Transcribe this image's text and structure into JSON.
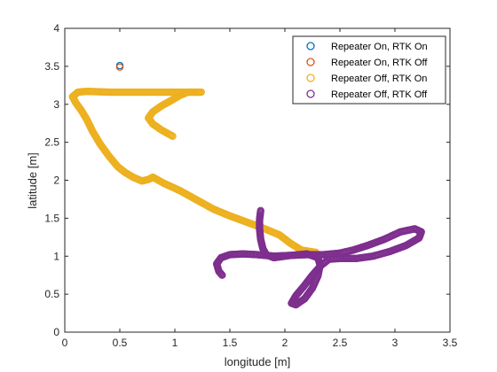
{
  "chart_data": {
    "type": "scatter",
    "title": "",
    "xlabel": "longitude [m]",
    "ylabel": "latitude [m]",
    "xlim": [
      0,
      3.5
    ],
    "ylim": [
      0,
      4
    ],
    "xticks": [
      "0",
      "0.5",
      "1",
      "1.5",
      "2",
      "2.5",
      "3",
      "3.5"
    ],
    "yticks": [
      "0",
      "0.5",
      "1",
      "1.5",
      "2",
      "2.5",
      "3",
      "3.5",
      "4"
    ],
    "grid": false,
    "legend_position": "top-right",
    "series": [
      {
        "name": "Repeater On, RTK On",
        "color": "#0072bd",
        "path": [
          [
            0.5,
            3.51
          ]
        ]
      },
      {
        "name": "Repeater On, RTK Off",
        "color": "#d95319",
        "path": [
          [
            0.5,
            3.49
          ]
        ]
      },
      {
        "name": "Repeater Off, RTK On",
        "color": "#edb120",
        "path": [
          [
            0.98,
            2.58
          ],
          [
            0.88,
            2.66
          ],
          [
            0.8,
            2.74
          ],
          [
            0.76,
            2.82
          ],
          [
            0.8,
            2.9
          ],
          [
            0.88,
            2.98
          ],
          [
            0.98,
            3.06
          ],
          [
            1.05,
            3.12
          ],
          [
            1.12,
            3.16
          ],
          [
            1.24,
            3.16
          ],
          [
            1.0,
            3.16
          ],
          [
            0.8,
            3.16
          ],
          [
            0.6,
            3.16
          ],
          [
            0.4,
            3.16
          ],
          [
            0.2,
            3.17
          ],
          [
            0.12,
            3.16
          ],
          [
            0.07,
            3.1
          ],
          [
            0.1,
            3.02
          ],
          [
            0.15,
            2.92
          ],
          [
            0.2,
            2.8
          ],
          [
            0.25,
            2.65
          ],
          [
            0.32,
            2.48
          ],
          [
            0.4,
            2.32
          ],
          [
            0.48,
            2.18
          ],
          [
            0.55,
            2.1
          ],
          [
            0.62,
            2.04
          ],
          [
            0.7,
            1.99
          ],
          [
            0.76,
            2.01
          ],
          [
            0.8,
            2.04
          ],
          [
            0.9,
            1.96
          ],
          [
            1.05,
            1.86
          ],
          [
            1.2,
            1.74
          ],
          [
            1.35,
            1.62
          ],
          [
            1.5,
            1.53
          ],
          [
            1.65,
            1.45
          ],
          [
            1.8,
            1.37
          ],
          [
            1.95,
            1.28
          ],
          [
            2.05,
            1.17
          ],
          [
            2.15,
            1.08
          ],
          [
            2.28,
            1.05
          ]
        ]
      },
      {
        "name": "Repeater Off, RTK Off",
        "color": "#7e2f8e",
        "path": [
          [
            1.43,
            0.75
          ],
          [
            1.4,
            0.8
          ],
          [
            1.38,
            0.9
          ],
          [
            1.42,
            0.98
          ],
          [
            1.5,
            1.02
          ],
          [
            1.62,
            1.03
          ],
          [
            1.75,
            1.02
          ],
          [
            1.9,
            1.0
          ],
          [
            2.05,
            1.01
          ],
          [
            2.2,
            1.02
          ],
          [
            2.35,
            1.02
          ],
          [
            2.5,
            1.04
          ],
          [
            2.62,
            1.08
          ],
          [
            2.75,
            1.14
          ],
          [
            2.9,
            1.22
          ],
          [
            3.05,
            1.32
          ],
          [
            3.18,
            1.36
          ],
          [
            3.24,
            1.32
          ],
          [
            3.22,
            1.24
          ],
          [
            3.1,
            1.14
          ],
          [
            2.95,
            1.06
          ],
          [
            2.8,
            1.0
          ],
          [
            2.65,
            0.97
          ],
          [
            2.5,
            0.97
          ],
          [
            2.4,
            0.96
          ],
          [
            2.33,
            0.88
          ],
          [
            2.25,
            0.75
          ],
          [
            2.17,
            0.6
          ],
          [
            2.1,
            0.48
          ],
          [
            2.06,
            0.38
          ],
          [
            2.1,
            0.36
          ],
          [
            2.18,
            0.44
          ],
          [
            2.25,
            0.58
          ],
          [
            2.3,
            0.74
          ],
          [
            2.32,
            0.88
          ],
          [
            2.3,
            0.98
          ],
          [
            2.2,
            1.03
          ],
          [
            2.05,
            1.01
          ],
          [
            1.9,
            0.98
          ],
          [
            1.83,
            1.02
          ],
          [
            1.8,
            1.1
          ],
          [
            1.78,
            1.22
          ],
          [
            1.77,
            1.36
          ],
          [
            1.77,
            1.48
          ],
          [
            1.78,
            1.6
          ]
        ]
      }
    ]
  }
}
